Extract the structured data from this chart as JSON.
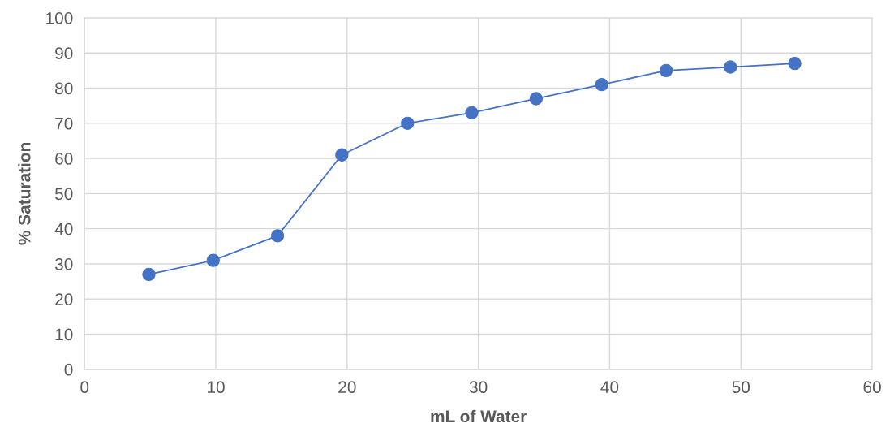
{
  "chart_data": {
    "type": "line",
    "xlabel": "mL of Water",
    "ylabel": "% Saturation",
    "x": [
      4.9,
      9.8,
      14.7,
      19.6,
      24.6,
      29.5,
      34.4,
      39.4,
      44.3,
      49.2,
      54.1
    ],
    "series": [
      {
        "color": "#4472c4",
        "values": [
          27,
          31,
          38,
          61,
          70,
          73,
          77,
          81,
          85,
          86,
          87
        ]
      }
    ],
    "xlim": [
      0,
      60
    ],
    "xticks": [
      0,
      10,
      20,
      30,
      40,
      50,
      60
    ],
    "ylim": [
      0,
      100
    ],
    "yticks": [
      0,
      10,
      20,
      30,
      40,
      50,
      60,
      70,
      80,
      90,
      100
    ],
    "grid": true,
    "marker": "circle",
    "line_style": "solid"
  }
}
